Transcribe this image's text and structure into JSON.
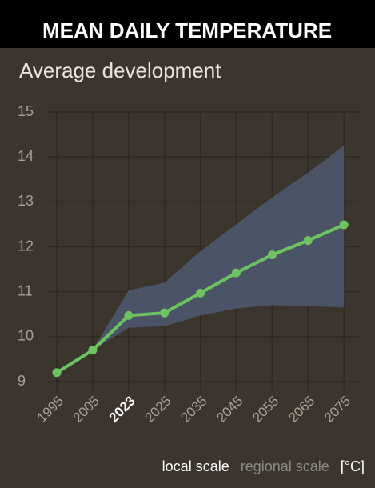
{
  "chart_data": {
    "type": "line",
    "title": "MEAN DAILY TEMPERATURE",
    "subtitle": "Average development",
    "categories": [
      "1995",
      "2005",
      "2023",
      "2025",
      "2035",
      "2045",
      "2055",
      "2065",
      "2075"
    ],
    "highlighted_category": "2023",
    "series": [
      {
        "name": "local scale",
        "color": "#6cc35f",
        "values": [
          9.2,
          9.7,
          10.47,
          10.53,
          10.97,
          11.42,
          11.82,
          12.14,
          12.49
        ]
      }
    ],
    "range": {
      "name": "regional scale",
      "color": "#4b5466",
      "lower": [
        null,
        9.7,
        10.2,
        10.23,
        10.47,
        10.63,
        10.7,
        10.68,
        10.65
      ],
      "upper": [
        null,
        9.7,
        11.03,
        11.2,
        11.9,
        12.5,
        13.1,
        13.65,
        14.25
      ]
    },
    "unit": "[°C]",
    "ylim": [
      9,
      15
    ],
    "yticks": [
      9,
      10,
      11,
      12,
      13,
      14,
      15
    ],
    "grid": true
  }
}
